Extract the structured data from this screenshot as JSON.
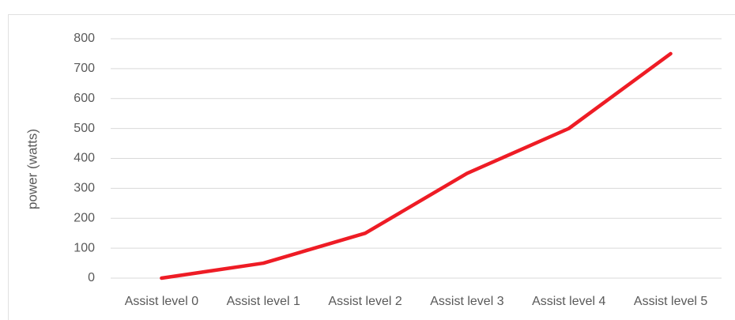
{
  "chart_data": {
    "type": "line",
    "y_label": "power (watts)",
    "categories": [
      "Assist level 0",
      "Assist level 1",
      "Assist level 2",
      "Assist level 3",
      "Assist level 4",
      "Assist level 5"
    ],
    "values": [
      0,
      50,
      150,
      350,
      500,
      750
    ],
    "color": "#ee1c25",
    "ylim": [
      0,
      800
    ],
    "yticks": [
      0,
      100,
      200,
      300,
      400,
      500,
      600,
      700,
      800
    ],
    "grid": true
  }
}
